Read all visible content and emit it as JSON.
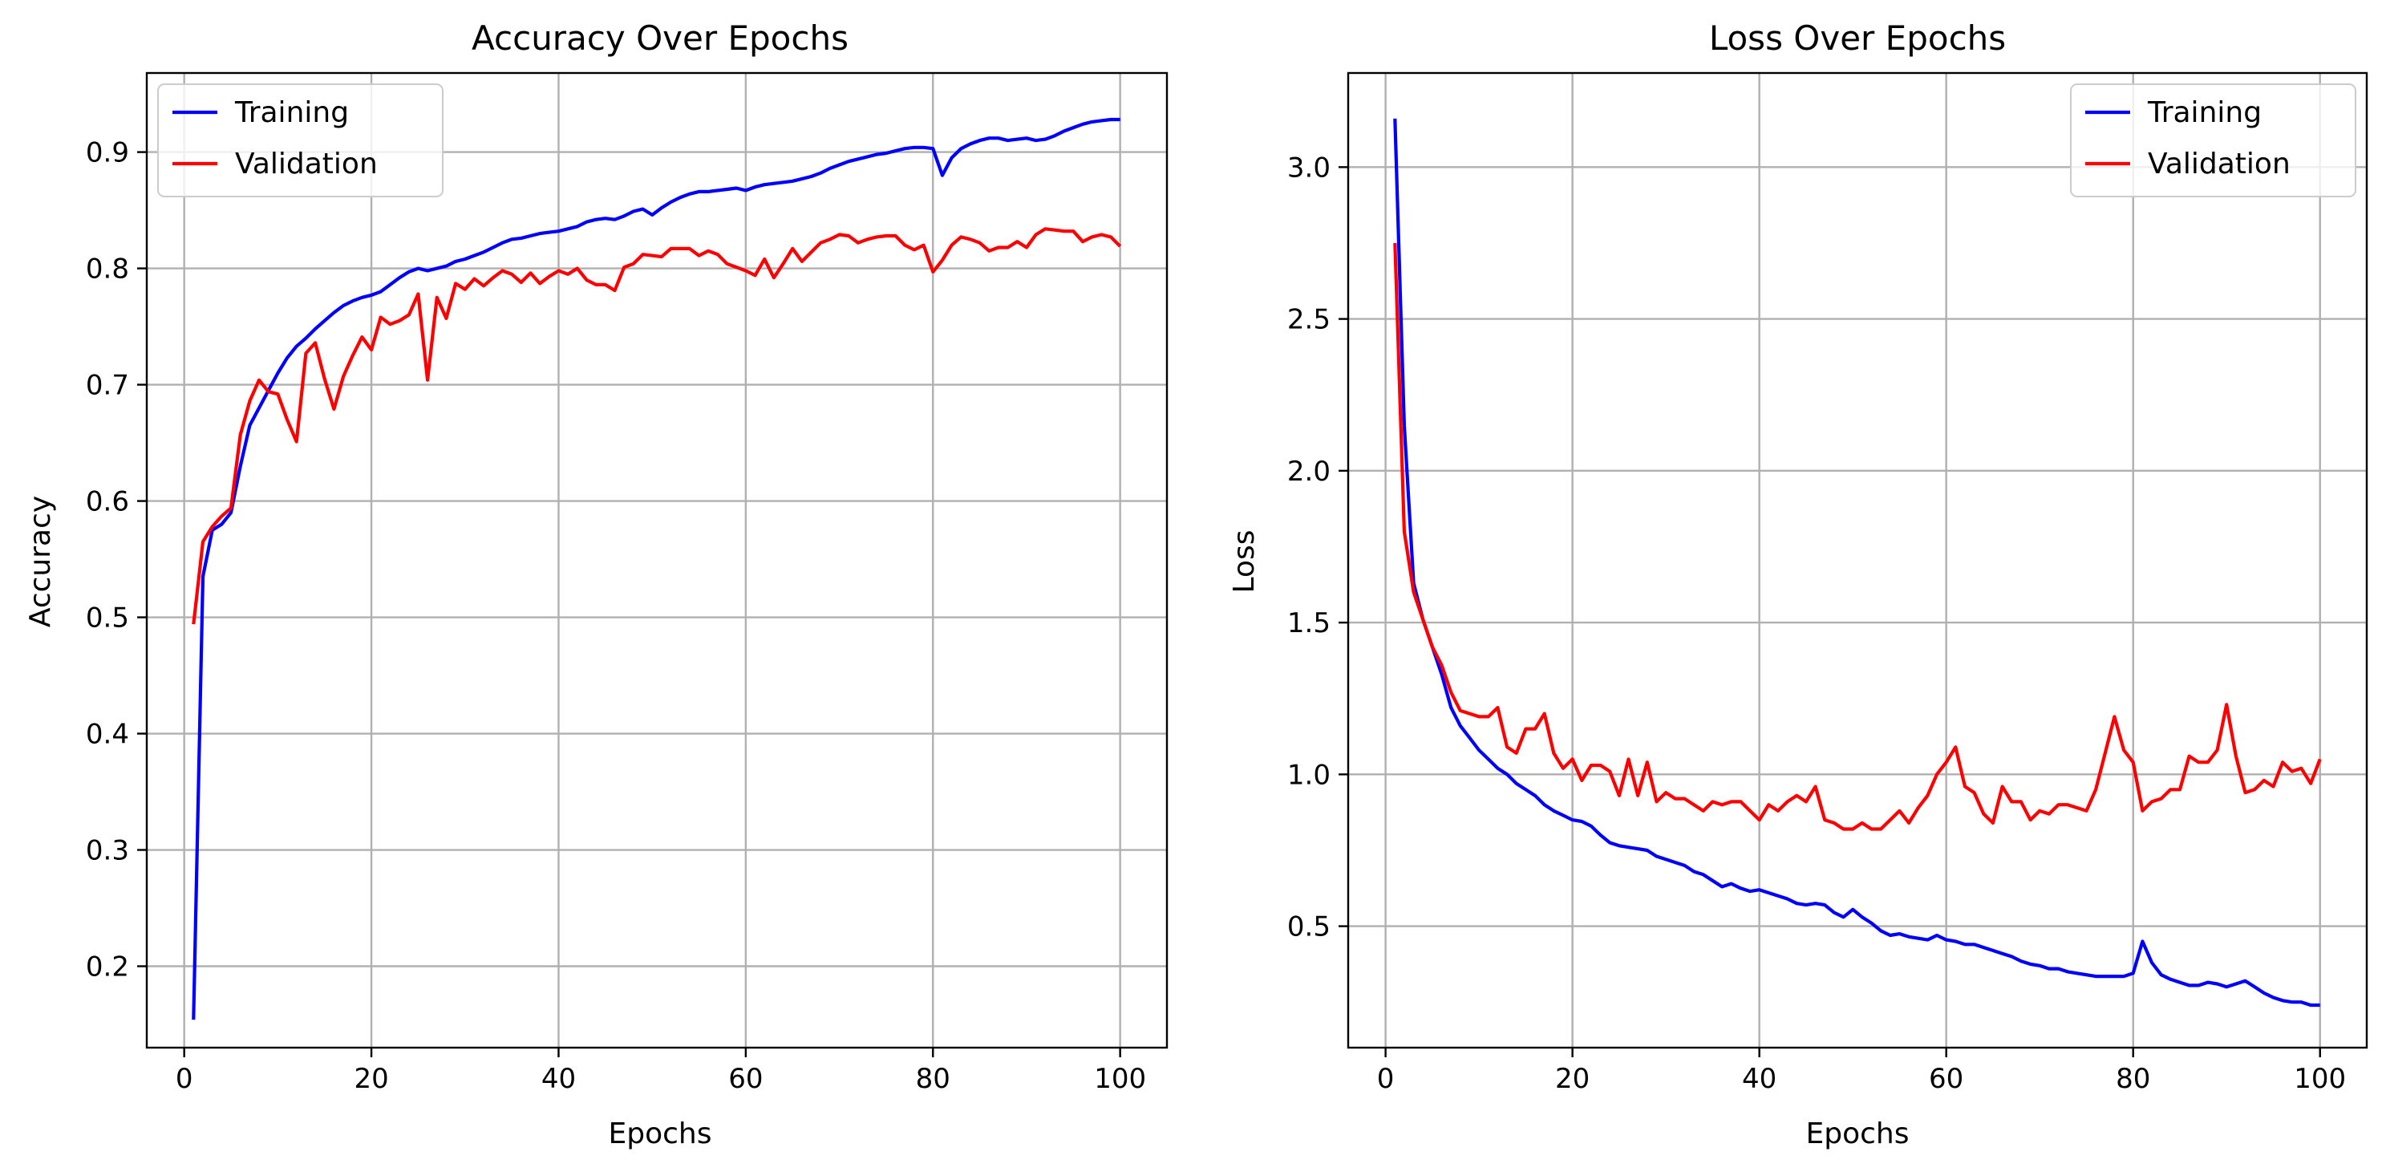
{
  "chart_data": [
    {
      "type": "line",
      "title": "Accuracy Over Epochs",
      "xlabel": "Epochs",
      "ylabel": "Accuracy",
      "xlim": [
        -4,
        105
      ],
      "ylim": [
        0.13,
        0.968
      ],
      "xticks": [
        0,
        20,
        40,
        60,
        80,
        100
      ],
      "yticks": [
        0.2,
        0.3,
        0.4,
        0.5,
        0.6,
        0.7,
        0.8,
        0.9
      ],
      "ytick_labels": [
        "0.2",
        "0.3",
        "0.4",
        "0.5",
        "0.6",
        "0.7",
        "0.8",
        "0.9"
      ],
      "grid": true,
      "legend_position": "upper-left",
      "series": [
        {
          "name": "Training",
          "color": "#0000ff",
          "values": [
            0.154,
            0.535,
            0.575,
            0.58,
            0.59,
            0.63,
            0.665,
            0.68,
            0.695,
            0.71,
            0.723,
            0.733,
            0.74,
            0.748,
            0.755,
            0.762,
            0.768,
            0.772,
            0.775,
            0.777,
            0.78,
            0.786,
            0.792,
            0.797,
            0.8,
            0.798,
            0.8,
            0.802,
            0.806,
            0.808,
            0.811,
            0.814,
            0.818,
            0.822,
            0.825,
            0.826,
            0.828,
            0.83,
            0.831,
            0.832,
            0.834,
            0.836,
            0.84,
            0.842,
            0.843,
            0.842,
            0.845,
            0.849,
            0.851,
            0.846,
            0.852,
            0.857,
            0.861,
            0.864,
            0.866,
            0.866,
            0.867,
            0.868,
            0.869,
            0.867,
            0.87,
            0.872,
            0.873,
            0.874,
            0.875,
            0.877,
            0.879,
            0.882,
            0.886,
            0.889,
            0.892,
            0.894,
            0.896,
            0.898,
            0.899,
            0.901,
            0.903,
            0.904,
            0.904,
            0.903,
            0.88,
            0.895,
            0.903,
            0.907,
            0.91,
            0.912,
            0.912,
            0.91,
            0.911,
            0.912,
            0.91,
            0.911,
            0.914,
            0.918,
            0.921,
            0.924,
            0.926,
            0.927,
            0.928,
            0.928
          ]
        },
        {
          "name": "Validation",
          "color": "#ff0000",
          "values": [
            0.494,
            0.565,
            0.578,
            0.587,
            0.594,
            0.657,
            0.686,
            0.704,
            0.694,
            0.692,
            0.67,
            0.651,
            0.727,
            0.736,
            0.705,
            0.679,
            0.707,
            0.725,
            0.741,
            0.73,
            0.758,
            0.752,
            0.755,
            0.76,
            0.778,
            0.704,
            0.775,
            0.757,
            0.787,
            0.782,
            0.791,
            0.785,
            0.792,
            0.798,
            0.795,
            0.788,
            0.796,
            0.787,
            0.793,
            0.798,
            0.795,
            0.8,
            0.79,
            0.786,
            0.786,
            0.781,
            0.801,
            0.804,
            0.812,
            0.811,
            0.81,
            0.817,
            0.817,
            0.817,
            0.811,
            0.815,
            0.812,
            0.804,
            0.801,
            0.798,
            0.794,
            0.808,
            0.792,
            0.804,
            0.817,
            0.806,
            0.814,
            0.822,
            0.825,
            0.829,
            0.828,
            0.822,
            0.825,
            0.827,
            0.828,
            0.828,
            0.82,
            0.816,
            0.82,
            0.797,
            0.807,
            0.82,
            0.827,
            0.825,
            0.822,
            0.815,
            0.818,
            0.818,
            0.823,
            0.818,
            0.829,
            0.834,
            0.833,
            0.832,
            0.832,
            0.823,
            0.827,
            0.829,
            0.827,
            0.819
          ]
        }
      ]
    },
    {
      "type": "line",
      "title": "Loss Over Epochs",
      "xlabel": "Epochs",
      "ylabel": "Loss",
      "xlim": [
        -4,
        105
      ],
      "ylim": [
        0.1,
        3.31
      ],
      "xticks": [
        0,
        20,
        40,
        60,
        80,
        100
      ],
      "yticks": [
        0.5,
        1.0,
        1.5,
        2.0,
        2.5,
        3.0
      ],
      "ytick_labels": [
        "0.5",
        "1.0",
        "1.5",
        "2.0",
        "2.5",
        "3.0"
      ],
      "grid": true,
      "legend_position": "upper-right",
      "series": [
        {
          "name": "Training",
          "color": "#0000ff",
          "values": [
            3.16,
            2.15,
            1.63,
            1.51,
            1.42,
            1.33,
            1.22,
            1.16,
            1.12,
            1.08,
            1.05,
            1.02,
            1.0,
            0.97,
            0.95,
            0.93,
            0.9,
            0.88,
            0.865,
            0.85,
            0.845,
            0.83,
            0.8,
            0.775,
            0.765,
            0.76,
            0.755,
            0.75,
            0.73,
            0.72,
            0.71,
            0.7,
            0.68,
            0.67,
            0.65,
            0.63,
            0.64,
            0.625,
            0.615,
            0.62,
            0.61,
            0.6,
            0.59,
            0.575,
            0.57,
            0.575,
            0.57,
            0.545,
            0.53,
            0.555,
            0.53,
            0.51,
            0.485,
            0.47,
            0.475,
            0.465,
            0.46,
            0.455,
            0.47,
            0.455,
            0.45,
            0.44,
            0.44,
            0.43,
            0.42,
            0.41,
            0.4,
            0.385,
            0.375,
            0.37,
            0.36,
            0.36,
            0.35,
            0.345,
            0.34,
            0.335,
            0.335,
            0.335,
            0.335,
            0.345,
            0.45,
            0.38,
            0.34,
            0.325,
            0.315,
            0.305,
            0.305,
            0.315,
            0.31,
            0.3,
            0.31,
            0.32,
            0.3,
            0.28,
            0.265,
            0.255,
            0.25,
            0.25,
            0.24,
            0.24
          ]
        },
        {
          "name": "Validation",
          "color": "#ff0000",
          "values": [
            2.75,
            1.8,
            1.6,
            1.51,
            1.42,
            1.36,
            1.27,
            1.21,
            1.2,
            1.19,
            1.19,
            1.22,
            1.09,
            1.07,
            1.15,
            1.15,
            1.2,
            1.07,
            1.02,
            1.05,
            0.98,
            1.03,
            1.03,
            1.01,
            0.93,
            1.05,
            0.93,
            1.04,
            0.91,
            0.94,
            0.92,
            0.92,
            0.9,
            0.88,
            0.91,
            0.9,
            0.91,
            0.91,
            0.88,
            0.85,
            0.9,
            0.88,
            0.91,
            0.93,
            0.91,
            0.96,
            0.85,
            0.84,
            0.82,
            0.82,
            0.84,
            0.82,
            0.82,
            0.85,
            0.88,
            0.84,
            0.89,
            0.93,
            1.0,
            1.04,
            1.09,
            0.96,
            0.94,
            0.87,
            0.84,
            0.96,
            0.91,
            0.91,
            0.85,
            0.88,
            0.87,
            0.9,
            0.9,
            0.89,
            0.88,
            0.95,
            1.07,
            1.19,
            1.08,
            1.04,
            0.88,
            0.91,
            0.92,
            0.95,
            0.95,
            1.06,
            1.04,
            1.04,
            1.08,
            1.23,
            1.06,
            0.94,
            0.95,
            0.98,
            0.96,
            1.04,
            1.01,
            1.02,
            0.97,
            1.05
          ]
        }
      ]
    }
  ]
}
